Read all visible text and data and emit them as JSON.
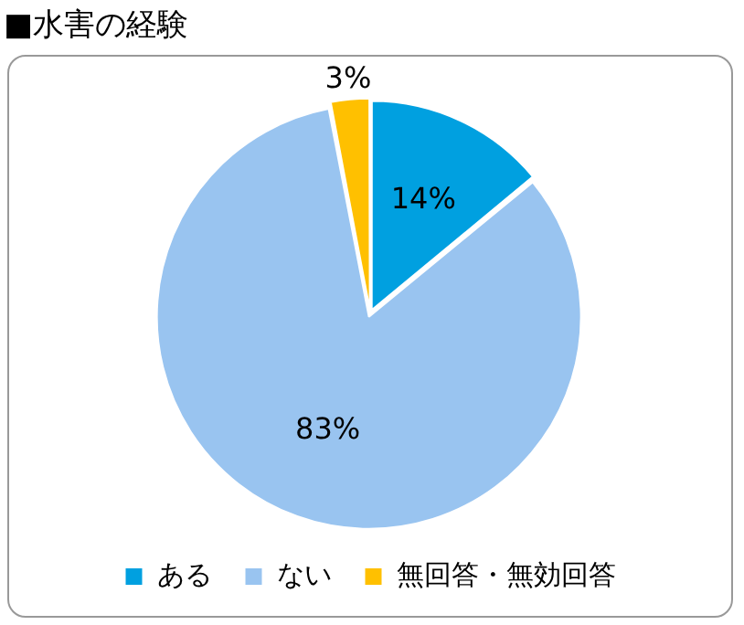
{
  "chart_data": {
    "type": "pie",
    "title": "■水害の経験",
    "categories": [
      "ある",
      "ない",
      "無回答・無効回答"
    ],
    "values": [
      14,
      83,
      3
    ],
    "colors": [
      "#00a0e0",
      "#99c4f0",
      "#ffc000"
    ],
    "value_labels": [
      "14%",
      "83%",
      "3%"
    ],
    "legend": "bottom"
  }
}
